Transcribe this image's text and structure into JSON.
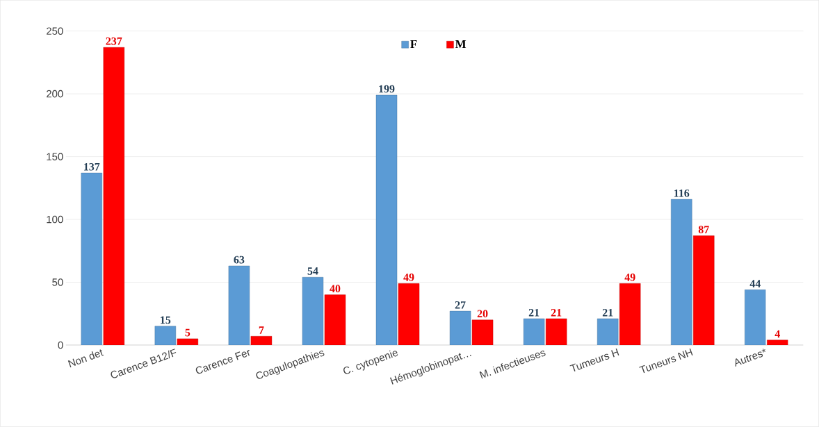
{
  "chart_data": {
    "type": "bar",
    "categories": [
      "Non det",
      "Carence B12/F",
      "Carence Fer",
      "Coagulopathies",
      "C. cytopenie",
      "Hémoglobinopat…",
      "M. infectieuses",
      "Tumeurs H",
      "Tuneurs NH",
      "Autres*"
    ],
    "series": [
      {
        "name": "F",
        "color": "#5b9bd5",
        "values": [
          137,
          15,
          63,
          54,
          199,
          27,
          21,
          21,
          116,
          44
        ]
      },
      {
        "name": "M",
        "color": "#ff0000",
        "values": [
          237,
          5,
          7,
          40,
          49,
          20,
          21,
          49,
          87,
          4
        ]
      }
    ],
    "ylim": [
      0,
      250
    ],
    "yticks": [
      0,
      50,
      100,
      150,
      200,
      250
    ],
    "grid": "y",
    "legend": "top",
    "data_labels": true
  }
}
